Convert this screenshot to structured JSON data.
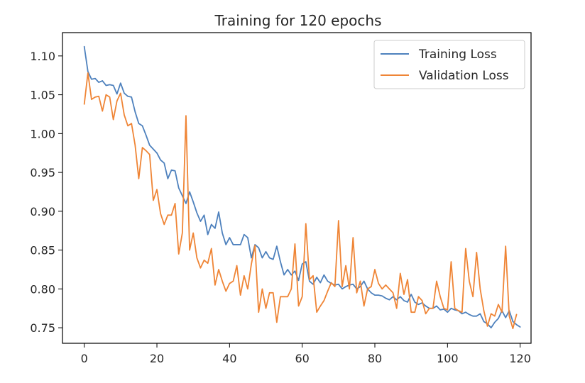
{
  "chart_data": {
    "type": "line",
    "title": "Training for 120 epochs",
    "xlabel": "",
    "ylabel": "",
    "xlim": [
      -6,
      123
    ],
    "ylim": [
      0.73,
      1.13
    ],
    "xticks": [
      0,
      20,
      40,
      60,
      80,
      100,
      120
    ],
    "xtick_labels": [
      "0",
      "20",
      "40",
      "60",
      "80",
      "100",
      "120"
    ],
    "yticks": [
      0.75,
      0.8,
      0.85,
      0.9,
      0.95,
      1.0,
      1.05,
      1.1
    ],
    "ytick_labels": [
      "0.75",
      "0.80",
      "0.85",
      "0.90",
      "0.95",
      "1.00",
      "1.05",
      "1.10"
    ],
    "grid": false,
    "legend_position": "top-right",
    "series": [
      {
        "name": "Training Loss",
        "color": "#4e81bd",
        "values": [
          1.112,
          1.08,
          1.07,
          1.071,
          1.066,
          1.068,
          1.062,
          1.063,
          1.062,
          1.051,
          1.065,
          1.052,
          1.048,
          1.047,
          1.028,
          1.013,
          1.01,
          0.998,
          0.985,
          0.98,
          0.975,
          0.966,
          0.962,
          0.942,
          0.953,
          0.952,
          0.93,
          0.92,
          0.91,
          0.925,
          0.912,
          0.898,
          0.887,
          0.895,
          0.87,
          0.883,
          0.878,
          0.899,
          0.872,
          0.857,
          0.866,
          0.857,
          0.857,
          0.857,
          0.87,
          0.866,
          0.84,
          0.857,
          0.853,
          0.84,
          0.848,
          0.84,
          0.838,
          0.855,
          0.835,
          0.818,
          0.825,
          0.818,
          0.823,
          0.811,
          0.832,
          0.835,
          0.81,
          0.806,
          0.815,
          0.808,
          0.818,
          0.81,
          0.807,
          0.805,
          0.806,
          0.8,
          0.803,
          0.805,
          0.806,
          0.8,
          0.803,
          0.81,
          0.8,
          0.795,
          0.792,
          0.792,
          0.791,
          0.788,
          0.786,
          0.79,
          0.786,
          0.79,
          0.785,
          0.783,
          0.793,
          0.783,
          0.78,
          0.782,
          0.778,
          0.775,
          0.775,
          0.778,
          0.773,
          0.774,
          0.77,
          0.775,
          0.773,
          0.772,
          0.768,
          0.77,
          0.767,
          0.765,
          0.765,
          0.768,
          0.758,
          0.755,
          0.75,
          0.757,
          0.762,
          0.772,
          0.763,
          0.772,
          0.758,
          0.754,
          0.751
        ]
      },
      {
        "name": "Validation Loss",
        "color": "#ef8536",
        "values": [
          1.038,
          1.078,
          1.044,
          1.047,
          1.048,
          1.029,
          1.05,
          1.047,
          1.018,
          1.042,
          1.052,
          1.024,
          1.01,
          1.013,
          0.985,
          0.942,
          0.982,
          0.978,
          0.973,
          0.914,
          0.928,
          0.897,
          0.883,
          0.895,
          0.895,
          0.91,
          0.845,
          0.872,
          1.023,
          0.85,
          0.872,
          0.84,
          0.827,
          0.837,
          0.833,
          0.852,
          0.805,
          0.825,
          0.81,
          0.797,
          0.807,
          0.81,
          0.83,
          0.792,
          0.817,
          0.8,
          0.832,
          0.856,
          0.77,
          0.8,
          0.775,
          0.795,
          0.795,
          0.757,
          0.79,
          0.79,
          0.79,
          0.8,
          0.858,
          0.778,
          0.79,
          0.884,
          0.812,
          0.817,
          0.77,
          0.778,
          0.785,
          0.797,
          0.808,
          0.803,
          0.888,
          0.803,
          0.83,
          0.8,
          0.866,
          0.795,
          0.81,
          0.778,
          0.8,
          0.803,
          0.825,
          0.807,
          0.8,
          0.805,
          0.8,
          0.795,
          0.775,
          0.82,
          0.793,
          0.812,
          0.77,
          0.77,
          0.79,
          0.785,
          0.768,
          0.775,
          0.775,
          0.81,
          0.79,
          0.775,
          0.773,
          0.835,
          0.775,
          0.772,
          0.77,
          0.852,
          0.81,
          0.79,
          0.847,
          0.8,
          0.772,
          0.752,
          0.768,
          0.765,
          0.78,
          0.77,
          0.855,
          0.765,
          0.749,
          0.767
        ]
      }
    ]
  }
}
